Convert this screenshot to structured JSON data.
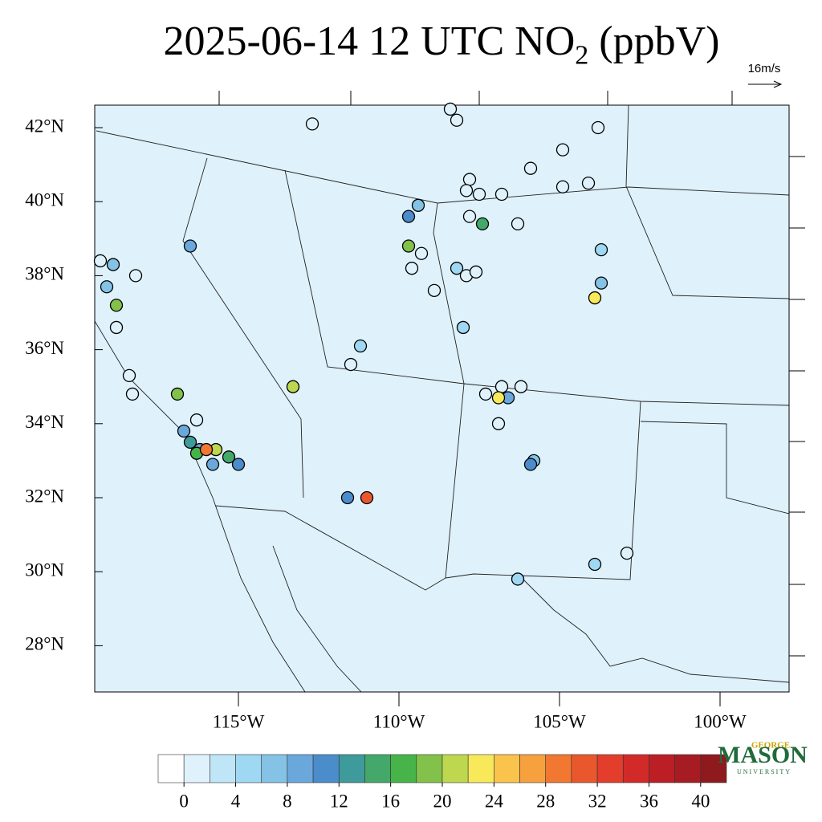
{
  "title": {
    "main": "2025-06-14 12 UTC NO",
    "sub": "2",
    "tail": "(ppbV)"
  },
  "wind_reference": "16m/s",
  "lat_ticks": [
    {
      "value": 42,
      "label": "42°N"
    },
    {
      "value": 40,
      "label": "40°N"
    },
    {
      "value": 38,
      "label": "38°N"
    },
    {
      "value": 36,
      "label": "36°N"
    },
    {
      "value": 34,
      "label": "34°N"
    },
    {
      "value": 32,
      "label": "32°N"
    },
    {
      "value": 30,
      "label": "30°N"
    },
    {
      "value": 28,
      "label": "28°N"
    }
  ],
  "lon_ticks": [
    {
      "value": -115,
      "label": "115°W"
    },
    {
      "value": -110,
      "label": "110°W"
    },
    {
      "value": -105,
      "label": "105°W"
    },
    {
      "value": -100,
      "label": "100°W"
    }
  ],
  "colorbar": {
    "ticks": [
      0,
      4,
      8,
      12,
      16,
      20,
      24,
      28,
      32,
      36,
      40
    ],
    "colors": [
      "#ffffff",
      "#dff2fb",
      "#bfe6f7",
      "#9fd8f3",
      "#84c2e6",
      "#6aa8dc",
      "#4b8ccb",
      "#3f9a9c",
      "#43a86a",
      "#47b44a",
      "#82c24a",
      "#bdd74e",
      "#f7e95a",
      "#f9c34c",
      "#f7a03e",
      "#f27832",
      "#e9582d",
      "#e23e2b",
      "#d22a29",
      "#bb1f25",
      "#a61c22",
      "#8f1a1e"
    ]
  },
  "stations": [
    {
      "lon": -119.3,
      "lat": 38.4,
      "value": 1
    },
    {
      "lon": -119.1,
      "lat": 37.7,
      "value": 6
    },
    {
      "lon": -118.9,
      "lat": 38.3,
      "value": 6
    },
    {
      "lon": -118.2,
      "lat": 38.0,
      "value": 1
    },
    {
      "lon": -118.8,
      "lat": 37.2,
      "value": 18
    },
    {
      "lon": -118.8,
      "lat": 36.6,
      "value": 1
    },
    {
      "lon": -118.4,
      "lat": 35.3,
      "value": 1
    },
    {
      "lon": -118.3,
      "lat": 34.8,
      "value": 1
    },
    {
      "lon": -116.9,
      "lat": 34.8,
      "value": 18
    },
    {
      "lon": -116.5,
      "lat": 38.8,
      "value": 8
    },
    {
      "lon": -116.3,
      "lat": 34.1,
      "value": 1
    },
    {
      "lon": -116.7,
      "lat": 33.8,
      "value": 8
    },
    {
      "lon": -116.5,
      "lat": 33.5,
      "value": 12
    },
    {
      "lon": -116.2,
      "lat": 33.3,
      "value": 8
    },
    {
      "lon": -115.7,
      "lat": 33.3,
      "value": 20
    },
    {
      "lon": -116.3,
      "lat": 33.2,
      "value": 16
    },
    {
      "lon": -116.0,
      "lat": 33.3,
      "value": 28
    },
    {
      "lon": -115.8,
      "lat": 32.9,
      "value": 8
    },
    {
      "lon": -115.3,
      "lat": 33.1,
      "value": 14
    },
    {
      "lon": -115.0,
      "lat": 32.9,
      "value": 10
    },
    {
      "lon": -113.3,
      "lat": 35.0,
      "value": 20
    },
    {
      "lon": -111.6,
      "lat": 32.0,
      "value": 10
    },
    {
      "lon": -111.0,
      "lat": 32.0,
      "value": 30
    },
    {
      "lon": -112.7,
      "lat": 42.1,
      "value": 1
    },
    {
      "lon": -109.7,
      "lat": 39.6,
      "value": 10
    },
    {
      "lon": -109.4,
      "lat": 39.9,
      "value": 6
    },
    {
      "lon": -109.3,
      "lat": 38.6,
      "value": 1
    },
    {
      "lon": -109.6,
      "lat": 38.2,
      "value": 1
    },
    {
      "lon": -109.7,
      "lat": 38.8,
      "value": 18
    },
    {
      "lon": -108.9,
      "lat": 37.6,
      "value": 1
    },
    {
      "lon": -111.2,
      "lat": 36.1,
      "value": 4
    },
    {
      "lon": -111.5,
      "lat": 35.6,
      "value": 1
    },
    {
      "lon": -107.8,
      "lat": 40.6,
      "value": 1
    },
    {
      "lon": -107.9,
      "lat": 40.3,
      "value": 1
    },
    {
      "lon": -107.5,
      "lat": 40.2,
      "value": 1
    },
    {
      "lon": -107.8,
      "lat": 39.6,
      "value": 1
    },
    {
      "lon": -107.4,
      "lat": 39.4,
      "value": 14
    },
    {
      "lon": -106.8,
      "lat": 40.2,
      "value": 1
    },
    {
      "lon": -106.3,
      "lat": 39.4,
      "value": 1
    },
    {
      "lon": -105.9,
      "lat": 40.9,
      "value": 1
    },
    {
      "lon": -104.9,
      "lat": 41.4,
      "value": 1
    },
    {
      "lon": -103.8,
      "lat": 42.0,
      "value": 1
    },
    {
      "lon": -104.1,
      "lat": 40.5,
      "value": 1
    },
    {
      "lon": -104.9,
      "lat": 40.4,
      "value": 1
    },
    {
      "lon": -103.7,
      "lat": 37.8,
      "value": 6
    },
    {
      "lon": -103.9,
      "lat": 37.4,
      "value": 22
    },
    {
      "lon": -103.7,
      "lat": 38.7,
      "value": 4
    },
    {
      "lon": -108.2,
      "lat": 38.2,
      "value": 4
    },
    {
      "lon": -107.9,
      "lat": 38.0,
      "value": 1
    },
    {
      "lon": -107.6,
      "lat": 38.1,
      "value": 1
    },
    {
      "lon": -108.0,
      "lat": 36.6,
      "value": 4
    },
    {
      "lon": -107.3,
      "lat": 34.8,
      "value": 1
    },
    {
      "lon": -106.8,
      "lat": 35.0,
      "value": 1
    },
    {
      "lon": -106.2,
      "lat": 35.0,
      "value": 1
    },
    {
      "lon": -106.6,
      "lat": 34.7,
      "value": 8
    },
    {
      "lon": -106.9,
      "lat": 34.7,
      "value": 22
    },
    {
      "lon": -106.9,
      "lat": 34.0,
      "value": 1
    },
    {
      "lon": -105.8,
      "lat": 33.0,
      "value": 6
    },
    {
      "lon": -105.9,
      "lat": 32.9,
      "value": 10
    },
    {
      "lon": -103.9,
      "lat": 30.2,
      "value": 4
    },
    {
      "lon": -102.9,
      "lat": 30.5,
      "value": 1
    },
    {
      "lon": -106.3,
      "lat": 29.8,
      "value": 4
    },
    {
      "lon": -108.4,
      "lat": 42.5,
      "value": 1
    },
    {
      "lon": -108.2,
      "lat": 42.2,
      "value": 1
    }
  ],
  "logo": {
    "top": "GEORGE",
    "main": "MASON",
    "bottom": "UNIVERSITY"
  }
}
